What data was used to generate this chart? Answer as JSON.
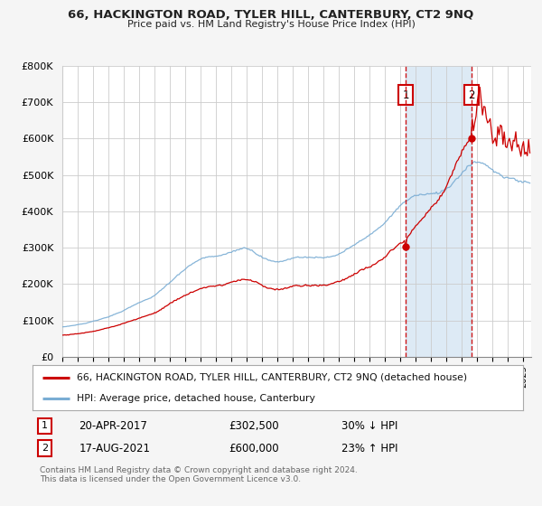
{
  "title": "66, HACKINGTON ROAD, TYLER HILL, CANTERBURY, CT2 9NQ",
  "subtitle": "Price paid vs. HM Land Registry's House Price Index (HPI)",
  "property_label": "66, HACKINGTON ROAD, TYLER HILL, CANTERBURY, CT2 9NQ (detached house)",
  "hpi_label": "HPI: Average price, detached house, Canterbury",
  "sale1_date_x": 2017.33,
  "sale1_price": 302500,
  "sale1_label": "1",
  "sale1_text": "20-APR-2017",
  "sale1_price_text": "£302,500",
  "sale1_hpi_text": "30% ↓ HPI",
  "sale2_date_x": 2021.62,
  "sale2_price": 600000,
  "sale2_label": "2",
  "sale2_text": "17-AUG-2021",
  "sale2_price_text": "£600,000",
  "sale2_hpi_text": "23% ↑ HPI",
  "footnote": "Contains HM Land Registry data © Crown copyright and database right 2024.\nThis data is licensed under the Open Government Licence v3.0.",
  "ylim": [
    0,
    800000
  ],
  "xlim": [
    1995.0,
    2025.5
  ],
  "property_color": "#cc0000",
  "hpi_color": "#7aadd4",
  "shade_color": "#ddeaf5",
  "bg_color": "#f5f5f5",
  "plot_bg_color": "#ffffff",
  "grid_color": "#cccccc"
}
